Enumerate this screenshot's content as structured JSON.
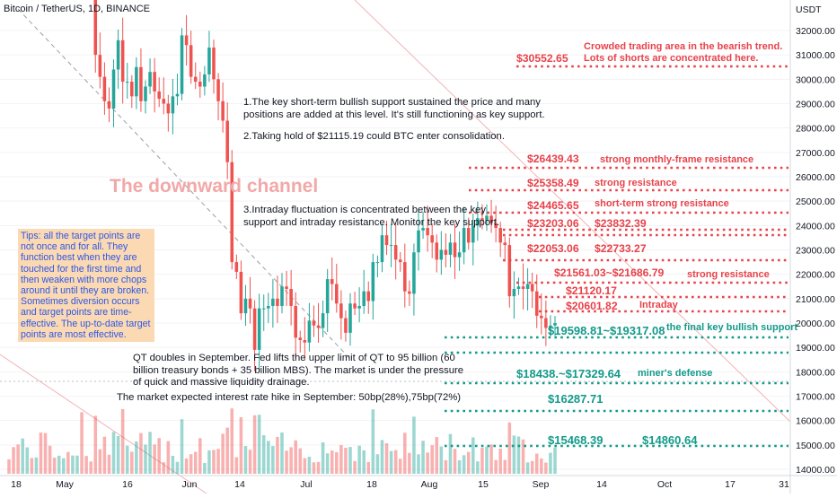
{
  "header": {
    "title": "Bitcoin / TetherUS, 1D, BINANCE"
  },
  "price_axis": {
    "unit": "USDT",
    "ticks": [
      "32000.00",
      "31000.00",
      "30000.00",
      "29000.00",
      "28000.00",
      "27000.00",
      "26000.00",
      "25000.00",
      "24000.00",
      "23000.00",
      "22000.00",
      "21000.00",
      "20000.00",
      "19000.00",
      "18000.00",
      "17000.00",
      "16000.00",
      "15000.00",
      "14000.00"
    ]
  },
  "time_axis": {
    "ticks": [
      "18",
      "May",
      "16",
      "Jun",
      "14",
      "Jul",
      "18",
      "Aug",
      "15",
      "Sep",
      "14",
      "Oct",
      "17",
      "31"
    ]
  },
  "notes": {
    "note1_line1": "1.The key short-term bullish support sustained the price and many",
    "note1_line2": "positions are added at this level. It's still functioning as key support.",
    "note2": "2.Taking hold of $21115.19 could BTC enter consolidation.",
    "note3_line1": "3.Intraday fluctuation is concentrated between the key",
    "note3_line2": "support and intraday resistance. Monitor the key support.",
    "qt_line1": "QT doubles in September. Fed lifts the upper limit of QT to 95 billion (60",
    "qt_line2": "billion treasury bonds + 35 billion MBS). The market is under the pressure",
    "qt_line3": "of quick and massive liquidity drainage.",
    "rate_hike": "The market expected interest rate hike in September: 50bp(28%),75bp(72%)",
    "channel": "The downward channel",
    "tips": "Tips: all the target points are not once and for all. They function best when they are touched for the first time and then weaken with more chops around it until they are broken. Sometimes diversion occurs and target points are time-effective. The up-to-date target points are most effective.",
    "crowded_line1": "Crowded trading area in the bearish trend.",
    "crowded_line2": "Lots of shorts are concentrated here."
  },
  "levels": {
    "l30552": "$30552.65",
    "l26439": "$26439.43",
    "l26439_desc": "strong monthly-frame resistance",
    "l25358": "$25358.49",
    "l25358_desc": "strong resistance",
    "l24465": "$24465.65",
    "l24465_desc": "short-term strong resistance",
    "l23203": "$23203.06",
    "l23832": "$23832.39",
    "l22053": "$22053.06",
    "l22733": "$22733.27",
    "l21561": "$21561.03~$21686.79",
    "l21561_desc": "strong resistance",
    "l21120": "$21120.17",
    "l20601": "$20601.82",
    "l20601_desc": "Intraday",
    "l19598": "$19598.81~$19317.08",
    "l19598_desc": "the final key bullish support",
    "l18438": "$18438.~$17329.64",
    "l18438_desc": "miner's defense",
    "l16287": "$16287.71",
    "l15468": "$15468.39",
    "l14860": "$14860.64"
  },
  "colors": {
    "bull": "#26a69a",
    "bear": "#ef5350",
    "resistance": "#e8424a",
    "support": "#139a8a",
    "tips_bg": "#fbd9b3",
    "tips_text": "#2d57e6"
  },
  "chart_data": {
    "type": "candlestick",
    "symbol": "BTC/USDT",
    "interval": "1D",
    "ylim": [
      13800,
      32800
    ],
    "period": [
      "2022-04-15",
      "2022-09-02"
    ],
    "series_approx_closes": [
      40500,
      39700,
      38500,
      39400,
      40000,
      39100,
      39800,
      38300,
      38100,
      37700,
      36600,
      37600,
      38400,
      37700,
      38500,
      39600,
      36500,
      35400,
      34000,
      31000,
      30100,
      29100,
      28800,
      30400,
      31600,
      29900,
      29900,
      29300,
      30500,
      29100,
      29700,
      30300,
      29500,
      29200,
      29000,
      28600,
      29300,
      29400,
      31800,
      31400,
      30100,
      29900,
      29700,
      30200,
      31300,
      30000,
      29100,
      28300,
      26600,
      22500,
      22100,
      20400,
      21000,
      20600,
      18900,
      20600,
      20600,
      20700,
      21000,
      20700,
      21500,
      21400,
      20700,
      19400,
      19300,
      19200,
      20100,
      19900,
      19800,
      20400,
      21800,
      21600,
      20800,
      20200,
      19600,
      20800,
      20600,
      20700,
      21300,
      20900,
      22500,
      22500,
      23600,
      23200,
      23200,
      22600,
      22500,
      21300,
      21200,
      22900,
      23800,
      23900,
      23600,
      23300,
      22600,
      23000,
      22800,
      23300,
      22700,
      22900,
      23900,
      23300,
      24000,
      24300,
      24200,
      24400,
      24100,
      23900,
      23300,
      23200,
      21100,
      21400,
      21500,
      21400,
      21600,
      21300,
      20300,
      20200,
      19800,
      19900,
      20000
    ],
    "levels": [
      30552.65,
      26439.43,
      25358.49,
      24465.65,
      23832.39,
      23203.06,
      22733.27,
      22053.06,
      21686.79,
      21561.03,
      21120.17,
      20601.82,
      19598.81,
      19317.08,
      18438,
      17329.64,
      16287.71,
      15468.39,
      14860.64
    ]
  }
}
